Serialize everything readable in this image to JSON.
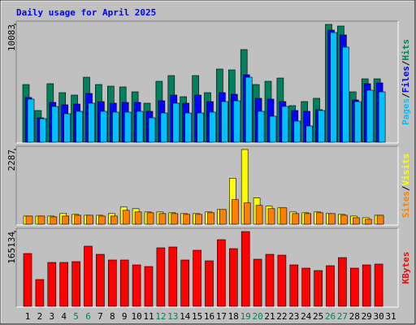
{
  "chart_data": [
    {
      "type": "bar",
      "title": "Daily usage for April 2025",
      "title_color": "#0000ff",
      "legend_separator": "/",
      "ylim": [
        0,
        10083
      ],
      "yticks": [
        10083
      ],
      "series": [
        {
          "name": "Hits",
          "color": "#00805c",
          "values": [
            4937,
            2712,
            5007,
            4242,
            4033,
            5563,
            4937,
            4798,
            4729,
            4311,
            3338,
            5215,
            5702,
            3894,
            5702,
            4242,
            6258,
            6189,
            7927,
            4937,
            5215,
            5493,
            3129,
            3477,
            3755,
            10083,
            9944,
            4311,
            5424,
            5424,
            null
          ]
        },
        {
          "name": "Files",
          "color": "#0000ff",
          "values": [
            3825,
            2086,
            3407,
            3199,
            3268,
            4172,
            3477,
            3338,
            3407,
            3407,
            2642,
            3546,
            4033,
            3338,
            4033,
            3477,
            4242,
            4103,
            5772,
            3755,
            3686,
            3477,
            2712,
            2642,
            2781,
            9596,
            9179,
            3616,
            5007,
            5076,
            null
          ]
        },
        {
          "name": "Pages",
          "color": "#00c0ff",
          "values": [
            3686,
            2016,
            3060,
            2434,
            2642,
            3338,
            2642,
            2573,
            2573,
            2642,
            2086,
            2503,
            3338,
            2503,
            2503,
            2573,
            3477,
            3546,
            5563,
            2642,
            2225,
            3060,
            1808,
            1391,
            2712,
            9388,
            8136,
            3477,
            4450,
            4311,
            null
          ]
        }
      ]
    },
    {
      "type": "bar",
      "legend_separator": "/",
      "ylim": [
        0,
        2287
      ],
      "yticks": [
        2287
      ],
      "series": [
        {
          "name": "Visits",
          "color": "#ffff00",
          "values": [
            251,
            251,
            251,
            327,
            302,
            276,
            276,
            327,
            528,
            477,
            377,
            377,
            352,
            327,
            327,
            377,
            452,
            1407,
            2287,
            804,
            553,
            503,
            377,
            352,
            377,
            327,
            302,
            251,
            201,
            276,
            null
          ]
        },
        {
          "name": "Sites",
          "color": "#ff8000",
          "values": [
            251,
            251,
            226,
            251,
            276,
            276,
            251,
            251,
            427,
            377,
            352,
            327,
            327,
            302,
            302,
            352,
            452,
            754,
            653,
            578,
            477,
            503,
            327,
            327,
            352,
            327,
            276,
            201,
            151,
            276,
            null
          ]
        }
      ]
    },
    {
      "type": "bar",
      "ylim": [
        0,
        165134
      ],
      "yticks": [
        165134
      ],
      "categories": [
        "1",
        "2",
        "3",
        "4",
        "5",
        "6",
        "7",
        "8",
        "9",
        "10",
        "11",
        "12",
        "13",
        "14",
        "15",
        "16",
        "17",
        "18",
        "19",
        "20",
        "21",
        "22",
        "23",
        "24",
        "25",
        "26",
        "27",
        "28",
        "29",
        "30",
        "31"
      ],
      "category_colors": [
        "#000000",
        "#000000",
        "#000000",
        "#000000",
        "#00805c",
        "#00805c",
        "#000000",
        "#000000",
        "#000000",
        "#000000",
        "#000000",
        "#00805c",
        "#00805c",
        "#000000",
        "#000000",
        "#000000",
        "#000000",
        "#000000",
        "#00805c",
        "#00805c",
        "#000000",
        "#000000",
        "#000000",
        "#000000",
        "#000000",
        "#00805c",
        "#00805c",
        "#000000",
        "#000000",
        "#000000",
        "#000000"
      ],
      "series": [
        {
          "name": "KBytes",
          "color": "#ff0000",
          "values": [
            116672,
            59233,
            96928,
            96928,
            98723,
            132826,
            114877,
            102313,
            102313,
            91543,
            87953,
            129236,
            131031,
            102313,
            123851,
            100518,
            147184,
            127441,
            165134,
            104108,
            114877,
            113082,
            91543,
            84363,
            78978,
            89748,
            107697,
            84363,
            91543,
            93338,
            null
          ]
        }
      ]
    }
  ]
}
